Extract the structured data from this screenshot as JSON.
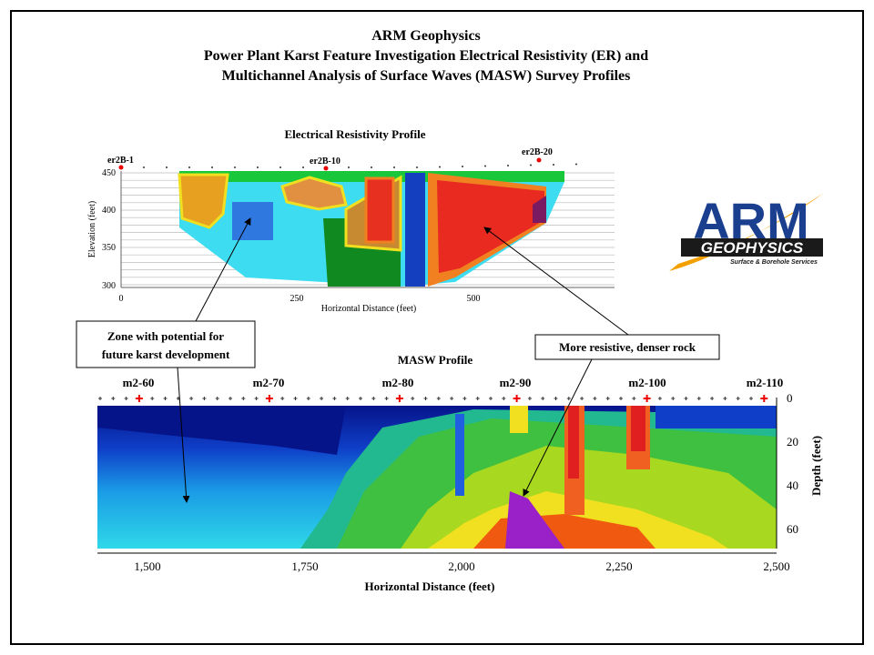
{
  "header": {
    "lines": [
      "ARM Geophysics",
      "Power Plant Karst Feature Investigation Electrical Resistivity (ER) and",
      "Multichannel Analysis of Surface Waves (MASW) Survey Profiles"
    ]
  },
  "er_profile": {
    "title": "Electrical  Resistivity Profile",
    "stations": [
      "er2B-1",
      "er2B-10",
      "er2B-20"
    ],
    "y_axis": {
      "label": "Elevation (feet)",
      "ticks": [
        450,
        400,
        350,
        300
      ]
    },
    "x_axis": {
      "label": "Horizontal Distance (feet)",
      "ticks": [
        0,
        250,
        500
      ]
    }
  },
  "logo": {
    "main": "ARM",
    "sub": "GEOPHYSICS",
    "tagline": "Surface & Borehole Services"
  },
  "callouts": [
    {
      "lines": [
        "Zone with  potential for",
        "future karst development"
      ]
    },
    {
      "lines": [
        "More resistive, denser rock"
      ]
    }
  ],
  "masw_profile": {
    "title": "MASW Profile",
    "stations": [
      "m2-60",
      "m2-70",
      "m2-80",
      "m2-90",
      "m2-100",
      "m2-110"
    ],
    "y_axis": {
      "label": "Depth (feet)",
      "ticks": [
        0,
        20,
        40,
        60
      ]
    },
    "x_axis": {
      "label": "Horizontal Distance (feet)",
      "ticks": [
        "1,500",
        "1,750",
        "2,000",
        "2,250",
        "2,500"
      ]
    }
  }
}
